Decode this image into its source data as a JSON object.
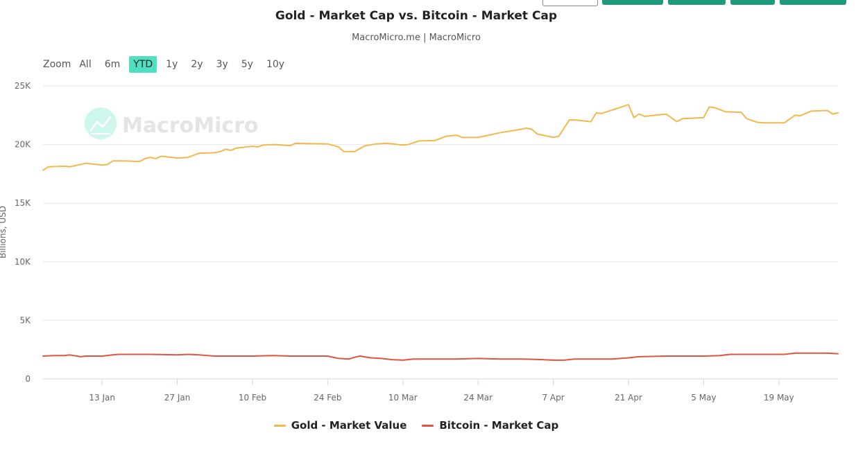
{
  "header": {
    "title": "Gold - Market Cap vs. Bitcoin - Market Cap",
    "subtitle": "MacroMicro.me | MacroMicro"
  },
  "watermark": {
    "text": "MacroMicro",
    "icon": "trend-chart-icon"
  },
  "zoom": {
    "label": "Zoom",
    "options": [
      "All",
      "6m",
      "YTD",
      "1y",
      "2y",
      "3y",
      "5y",
      "10y"
    ],
    "active": "YTD"
  },
  "colors": {
    "gold": "#f2b84b",
    "bitcoin": "#e0533f",
    "accent": "#4fe0c2",
    "button": "#1e9b7a"
  },
  "chart_data": {
    "type": "line",
    "ylabel": "Billions, USD",
    "ylim": [
      0,
      25000
    ],
    "yticks": [
      0,
      5000,
      10000,
      15000,
      20000,
      25000
    ],
    "ytick_labels": [
      "0",
      "5K",
      "10K",
      "15K",
      "20K",
      "25K"
    ],
    "xlim": [
      "2025-01-02",
      "2025-05-30"
    ],
    "xticks": [
      "2025-01-13",
      "2025-01-27",
      "2025-02-10",
      "2025-02-24",
      "2025-03-10",
      "2025-03-24",
      "2025-04-07",
      "2025-04-21",
      "2025-05-05",
      "2025-05-19"
    ],
    "xtick_labels": [
      "13 Jan",
      "27 Jan",
      "10 Feb",
      "24 Feb",
      "10 Mar",
      "24 Mar",
      "7 Apr",
      "21 Apr",
      "5 May",
      "19 May"
    ],
    "grid": "horizontal",
    "legend_position": "bottom",
    "series": [
      {
        "name": "Gold - Market Value",
        "color": "#f2b84b",
        "points": [
          [
            "2025-01-02",
            17800
          ],
          [
            "2025-01-03",
            18100
          ],
          [
            "2025-01-06",
            18150
          ],
          [
            "2025-01-07",
            18100
          ],
          [
            "2025-01-08",
            18200
          ],
          [
            "2025-01-10",
            18400
          ],
          [
            "2025-01-13",
            18250
          ],
          [
            "2025-01-14",
            18300
          ],
          [
            "2025-01-15",
            18600
          ],
          [
            "2025-01-17",
            18600
          ],
          [
            "2025-01-20",
            18550
          ],
          [
            "2025-01-21",
            18800
          ],
          [
            "2025-01-22",
            18900
          ],
          [
            "2025-01-23",
            18800
          ],
          [
            "2025-01-24",
            19000
          ],
          [
            "2025-01-27",
            18850
          ],
          [
            "2025-01-29",
            18900
          ],
          [
            "2025-01-31",
            19250
          ],
          [
            "2025-02-03",
            19300
          ],
          [
            "2025-02-04",
            19400
          ],
          [
            "2025-02-05",
            19600
          ],
          [
            "2025-02-06",
            19500
          ],
          [
            "2025-02-07",
            19700
          ],
          [
            "2025-02-10",
            19850
          ],
          [
            "2025-02-11",
            19800
          ],
          [
            "2025-02-12",
            19950
          ],
          [
            "2025-02-14",
            20000
          ],
          [
            "2025-02-17",
            19900
          ],
          [
            "2025-02-18",
            20100
          ],
          [
            "2025-02-24",
            20050
          ],
          [
            "2025-02-26",
            19800
          ],
          [
            "2025-02-27",
            19400
          ],
          [
            "2025-03-01",
            19400
          ],
          [
            "2025-03-03",
            19900
          ],
          [
            "2025-03-05",
            20050
          ],
          [
            "2025-03-07",
            20100
          ],
          [
            "2025-03-10",
            19950
          ],
          [
            "2025-03-11",
            20000
          ],
          [
            "2025-03-13",
            20300
          ],
          [
            "2025-03-16",
            20350
          ],
          [
            "2025-03-18",
            20700
          ],
          [
            "2025-03-20",
            20800
          ],
          [
            "2025-03-21",
            20600
          ],
          [
            "2025-03-24",
            20600
          ],
          [
            "2025-03-26",
            20800
          ],
          [
            "2025-03-28",
            21000
          ],
          [
            "2025-04-01",
            21300
          ],
          [
            "2025-04-02",
            21400
          ],
          [
            "2025-04-03",
            21300
          ],
          [
            "2025-04-04",
            20900
          ],
          [
            "2025-04-07",
            20600
          ],
          [
            "2025-04-08",
            20700
          ],
          [
            "2025-04-10",
            22100
          ],
          [
            "2025-04-11",
            22100
          ],
          [
            "2025-04-14",
            21950
          ],
          [
            "2025-04-15",
            22700
          ],
          [
            "2025-04-16",
            22650
          ],
          [
            "2025-04-21",
            23400
          ],
          [
            "2025-04-22",
            22300
          ],
          [
            "2025-04-23",
            22600
          ],
          [
            "2025-04-24",
            22400
          ],
          [
            "2025-04-28",
            22600
          ],
          [
            "2025-04-30",
            21950
          ],
          [
            "2025-05-01",
            22200
          ],
          [
            "2025-05-05",
            22300
          ],
          [
            "2025-05-06",
            23200
          ],
          [
            "2025-05-07",
            23150
          ],
          [
            "2025-05-09",
            22800
          ],
          [
            "2025-05-12",
            22750
          ],
          [
            "2025-05-13",
            22200
          ],
          [
            "2025-05-15",
            21900
          ],
          [
            "2025-05-16",
            21850
          ],
          [
            "2025-05-20",
            21850
          ],
          [
            "2025-05-22",
            22500
          ],
          [
            "2025-05-23",
            22450
          ],
          [
            "2025-05-25",
            22850
          ],
          [
            "2025-05-28",
            22900
          ],
          [
            "2025-05-29",
            22600
          ],
          [
            "2025-05-30",
            22700
          ]
        ]
      },
      {
        "name": "Bitcoin - Market Cap",
        "color": "#e0533f",
        "points": [
          [
            "2025-01-02",
            1950
          ],
          [
            "2025-01-04",
            2000
          ],
          [
            "2025-01-06",
            2000
          ],
          [
            "2025-01-07",
            2050
          ],
          [
            "2025-01-09",
            1900
          ],
          [
            "2025-01-10",
            1950
          ],
          [
            "2025-01-13",
            1950
          ],
          [
            "2025-01-15",
            2050
          ],
          [
            "2025-01-16",
            2100
          ],
          [
            "2025-01-20",
            2100
          ],
          [
            "2025-01-22",
            2100
          ],
          [
            "2025-01-27",
            2050
          ],
          [
            "2025-01-29",
            2100
          ],
          [
            "2025-01-31",
            2050
          ],
          [
            "2025-02-03",
            1950
          ],
          [
            "2025-02-07",
            1950
          ],
          [
            "2025-02-10",
            1950
          ],
          [
            "2025-02-14",
            2000
          ],
          [
            "2025-02-17",
            1950
          ],
          [
            "2025-02-21",
            1950
          ],
          [
            "2025-02-24",
            1950
          ],
          [
            "2025-02-26",
            1750
          ],
          [
            "2025-02-28",
            1700
          ],
          [
            "2025-03-01",
            1850
          ],
          [
            "2025-03-02",
            1950
          ],
          [
            "2025-03-04",
            1800
          ],
          [
            "2025-03-06",
            1750
          ],
          [
            "2025-03-08",
            1650
          ],
          [
            "2025-03-10",
            1600
          ],
          [
            "2025-03-12",
            1700
          ],
          [
            "2025-03-16",
            1700
          ],
          [
            "2025-03-20",
            1700
          ],
          [
            "2025-03-24",
            1750
          ],
          [
            "2025-03-28",
            1700
          ],
          [
            "2025-04-01",
            1700
          ],
          [
            "2025-04-05",
            1650
          ],
          [
            "2025-04-07",
            1600
          ],
          [
            "2025-04-09",
            1600
          ],
          [
            "2025-04-11",
            1700
          ],
          [
            "2025-04-14",
            1700
          ],
          [
            "2025-04-18",
            1700
          ],
          [
            "2025-04-21",
            1800
          ],
          [
            "2025-04-23",
            1900
          ],
          [
            "2025-04-28",
            1950
          ],
          [
            "2025-05-02",
            1950
          ],
          [
            "2025-05-05",
            1950
          ],
          [
            "2025-05-08",
            2000
          ],
          [
            "2025-05-10",
            2100
          ],
          [
            "2025-05-14",
            2100
          ],
          [
            "2025-05-18",
            2100
          ],
          [
            "2025-05-20",
            2100
          ],
          [
            "2025-05-22",
            2200
          ],
          [
            "2025-05-24",
            2200
          ],
          [
            "2025-05-26",
            2200
          ],
          [
            "2025-05-28",
            2200
          ],
          [
            "2025-05-30",
            2150
          ]
        ]
      }
    ]
  }
}
